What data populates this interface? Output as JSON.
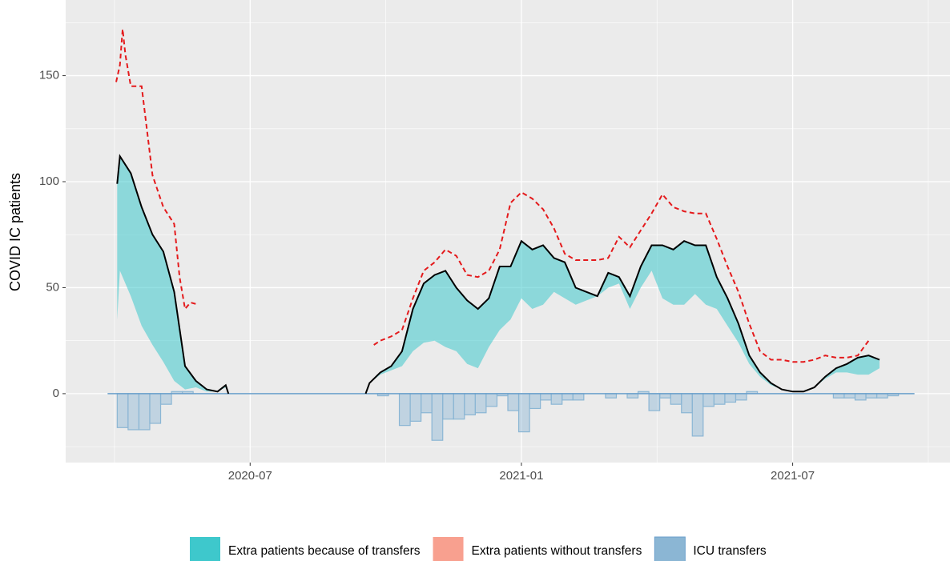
{
  "chart_data": {
    "type": "combo",
    "y_label": "COVID IC patients",
    "xlim": [
      2020.16,
      2021.79
    ],
    "ylim": [
      -32.5,
      185.7
    ],
    "xticks": [
      {
        "value": 2020.5,
        "label": "2020-07"
      },
      {
        "value": 2021.0,
        "label": "2021-01"
      },
      {
        "value": 2021.5,
        "label": "2021-07"
      }
    ],
    "yticks": [
      0,
      50,
      100,
      150
    ],
    "grid": true,
    "legend": "bottom",
    "series": [
      {
        "name": "Extra patients because of transfers",
        "color": "#3ec8cc",
        "lower": [
          [
            35,
            58,
            46,
            32,
            23,
            15,
            6,
            2,
            3,
            1,
            1,
            3,
            0
          ],
          [
            0,
            5,
            9,
            11,
            13,
            20,
            24,
            25,
            22,
            20,
            14,
            12,
            22,
            30,
            35,
            45,
            40,
            42,
            48,
            45,
            42,
            44,
            46,
            50,
            52,
            40,
            50,
            58,
            45,
            42,
            42,
            47,
            42,
            40,
            32,
            24,
            14,
            8,
            4,
            2,
            1,
            1,
            3,
            7,
            10,
            10,
            9,
            9,
            12
          ]
        ]
      },
      {
        "name": "Extra patients without transfers",
        "color": "#f8a08f"
      },
      {
        "name": "ICU transfers",
        "color": "#8bb6d4",
        "bins": [
          2020.255,
          2020.275,
          2020.295,
          2020.315,
          2020.335,
          2020.355,
          2020.375,
          2020.395,
          2020.415,
          2020.435,
          2020.455,
          2020.475,
          2020.495,
          2020.515,
          2020.535,
          2020.555,
          2020.575,
          2020.595,
          2020.615,
          2020.635,
          2020.655,
          2020.675,
          2020.695,
          2020.715,
          2020.735,
          2020.755,
          2020.775,
          2020.795,
          2020.815,
          2020.835,
          2020.855,
          2020.875,
          2020.895,
          2020.915,
          2020.935,
          2020.955,
          2020.975,
          2020.995,
          2021.015,
          2021.035,
          2021.055,
          2021.075,
          2021.095,
          2021.115,
          2021.135,
          2021.155,
          2021.175,
          2021.195,
          2021.215,
          2021.235,
          2021.255,
          2021.275,
          2021.295,
          2021.315,
          2021.335,
          2021.355,
          2021.375,
          2021.395,
          2021.415,
          2021.435,
          2021.455,
          2021.475,
          2021.495,
          2021.515,
          2021.535,
          2021.555,
          2021.575,
          2021.595,
          2021.615,
          2021.635,
          2021.655,
          2021.675,
          2021.695
        ],
        "values": [
          -16,
          -17,
          -17,
          -14,
          -5,
          1,
          1,
          0,
          0,
          0,
          0,
          0,
          0,
          0,
          0,
          0,
          0,
          0,
          0,
          0,
          0,
          0,
          0,
          0,
          -1,
          0,
          -15,
          -13,
          -9,
          -22,
          -12,
          -12,
          -10,
          -9,
          -6,
          -1,
          -8,
          -18,
          -7,
          -3,
          -5,
          -3,
          -3,
          0,
          0,
          -2,
          0,
          -2,
          1,
          -8,
          -2,
          -5,
          -9,
          -20,
          -6,
          -5,
          -4,
          -3,
          1,
          0,
          0,
          0,
          0,
          0,
          0,
          0,
          -2,
          -2,
          -3,
          -2,
          -2,
          -1
        ]
      }
    ],
    "lines": [
      {
        "color": "#000000",
        "dashed": false,
        "segments": [
          {
            "x": [
              2020.255,
              2020.26,
              2020.28,
              2020.3,
              2020.32,
              2020.34,
              2020.36,
              2020.38,
              2020.4,
              2020.42,
              2020.44,
              2020.455,
              2020.46
            ],
            "values": [
              99,
              112,
              104,
              88,
              75,
              67,
              48,
              13,
              6,
              2,
              1,
              4,
              0
            ]
          },
          {
            "x": [
              2020.713,
              2020.72,
              2020.74,
              2020.76,
              2020.78,
              2020.8,
              2020.82,
              2020.84,
              2020.86,
              2020.88,
              2020.9,
              2020.92,
              2020.94,
              2020.96,
              2020.98,
              2021,
              2021.02,
              2021.04,
              2021.06,
              2021.08,
              2021.1,
              2021.12,
              2021.14,
              2021.16,
              2021.18,
              2021.2,
              2021.22,
              2021.24,
              2021.26,
              2021.28,
              2021.3,
              2021.32,
              2021.34,
              2021.36,
              2021.38,
              2021.4,
              2021.42,
              2021.44,
              2021.46,
              2021.48,
              2021.5,
              2021.52,
              2021.54,
              2021.56,
              2021.58,
              2021.6,
              2021.62,
              2021.64,
              2021.66
            ],
            "values": [
              0,
              5,
              10,
              13,
              20,
              40,
              52,
              56,
              58,
              50,
              44,
              40,
              45,
              60,
              60,
              72,
              68,
              70,
              64,
              62,
              50,
              48,
              46,
              57,
              55,
              46,
              60,
              70,
              70,
              68,
              72,
              70,
              70,
              55,
              45,
              33,
              18,
              10,
              5,
              2,
              1,
              1,
              3,
              8,
              12,
              14,
              17,
              18,
              16
            ]
          }
        ]
      },
      {
        "color": "#e41a1c",
        "dashed": true,
        "segments": [
          {
            "x": [
              2020.253,
              2020.26,
              2020.265,
              2020.27,
              2020.28,
              2020.3,
              2020.32,
              2020.34,
              2020.36,
              2020.37,
              2020.38,
              2020.39,
              2020.405
            ],
            "values": [
              147,
              155,
              172,
              160,
              145,
              145,
              103,
              88,
              80,
              55,
              40,
              43,
              42
            ]
          },
          {
            "x": [
              2020.728,
              2020.74,
              2020.76,
              2020.78,
              2020.8,
              2020.82,
              2020.84,
              2020.86,
              2020.88,
              2020.9,
              2020.92,
              2020.94,
              2020.96,
              2020.98,
              2021,
              2021.02,
              2021.04,
              2021.06,
              2021.08,
              2021.1,
              2021.12,
              2021.14,
              2021.16,
              2021.18,
              2021.2,
              2021.22,
              2021.24,
              2021.26,
              2021.28,
              2021.3,
              2021.32,
              2021.34,
              2021.36,
              2021.38,
              2021.4,
              2021.42,
              2021.44,
              2021.46,
              2021.48,
              2021.5,
              2021.52,
              2021.54,
              2021.56,
              2021.58,
              2021.6,
              2021.62,
              2021.64
            ],
            "values": [
              23,
              25,
              27,
              30,
              45,
              58,
              62,
              68,
              65,
              56,
              55,
              58,
              68,
              90,
              95,
              92,
              87,
              78,
              66,
              63,
              63,
              63,
              64,
              74,
              69,
              77,
              85,
              94,
              88,
              86,
              85,
              85,
              73,
              60,
              48,
              33,
              20,
              16,
              16,
              15,
              15,
              16,
              18,
              17,
              17,
              18,
              25
            ]
          }
        ]
      }
    ]
  }
}
